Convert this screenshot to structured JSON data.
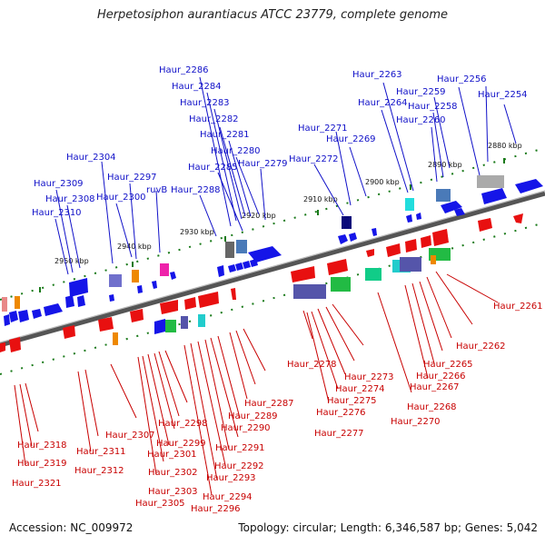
{
  "title": "Herpetosiphon aurantiacus ATCC 23779, complete genome",
  "footer": {
    "accession": "Accession: NC_009972",
    "stats": "Topology: circular; Length: 6,346,587 bp; Genes: 5,042"
  },
  "colors": {
    "forward": "#1515e8",
    "reverse": "#e81010",
    "top_label": "#1010c8",
    "bottom_label": "#c80000",
    "tick": "#1a7a1a",
    "axis": "#888888"
  },
  "kbp_ticks": [
    "2880 kbp",
    "2890 kbp",
    "2900 kbp",
    "2910 kbp",
    "2920 kbp",
    "2930 kbp",
    "2940 kbp",
    "2950 kbp"
  ],
  "top_labels": [
    "Haur_2286",
    "Haur_2284",
    "Haur_2283",
    "Haur_2282",
    "Haur_2281",
    "Haur_2280",
    "Haur_2285",
    "Haur_2279",
    "Haur_2288",
    "Haur_2304",
    "Haur_2297",
    "ruvB",
    "Haur_2309",
    "Haur_2300",
    "Haur_2308",
    "Haur_2310",
    "Haur_2263",
    "Haur_2256",
    "Haur_2259",
    "Haur_2254",
    "Haur_2264",
    "Haur_2258",
    "Haur_2260",
    "Haur_2271",
    "Haur_2269",
    "Haur_2272"
  ],
  "bottom_labels": [
    "Haur_2261",
    "Haur_2262",
    "Haur_2265",
    "Haur_2266",
    "Haur_2267",
    "Haur_2268",
    "Haur_2270",
    "Haur_2278",
    "Haur_2273",
    "Haur_2274",
    "Haur_2275",
    "Haur_2276",
    "Haur_2277",
    "Haur_2287",
    "Haur_2289",
    "Haur_2290",
    "Haur_2291",
    "Haur_2292",
    "Haur_2293",
    "Haur_2294",
    "Haur_2296",
    "Haur_2298",
    "Haur_2299",
    "Haur_2301",
    "Haur_2302",
    "Haur_2303",
    "Haur_2305",
    "Haur_2307",
    "Haur_2311",
    "Haur_2312",
    "Haur_2318",
    "Haur_2319",
    "Haur_2321"
  ]
}
